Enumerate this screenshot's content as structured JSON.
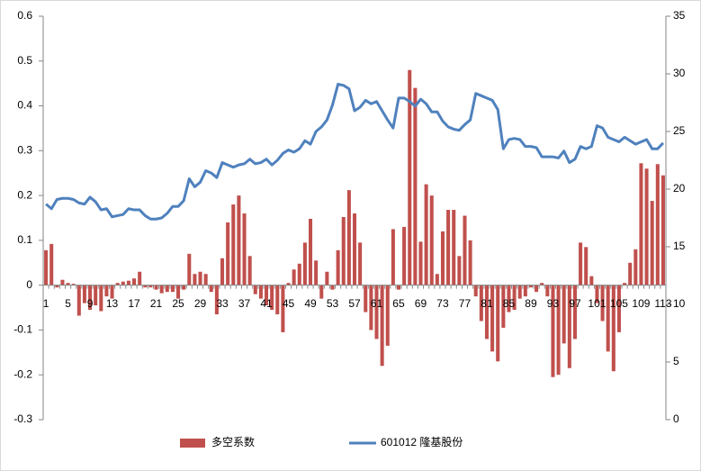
{
  "chart_data": {
    "type": "bar_line",
    "categories": [
      1,
      null,
      null,
      null,
      5,
      null,
      null,
      null,
      9,
      null,
      null,
      null,
      13,
      null,
      null,
      null,
      17,
      null,
      null,
      null,
      21,
      null,
      null,
      null,
      25,
      null,
      null,
      null,
      29,
      null,
      null,
      null,
      33,
      null,
      null,
      null,
      37,
      null,
      null,
      null,
      41,
      null,
      null,
      null,
      45,
      null,
      null,
      null,
      49,
      null,
      null,
      null,
      53,
      null,
      null,
      null,
      57,
      null,
      null,
      null,
      61,
      null,
      null,
      null,
      65,
      null,
      null,
      null,
      69,
      null,
      null,
      null,
      73,
      null,
      null,
      null,
      77,
      null,
      null,
      null,
      81,
      null,
      null,
      null,
      85,
      null,
      null,
      null,
      89,
      null,
      null,
      null,
      93,
      null,
      null,
      null,
      97,
      null,
      null,
      null,
      101,
      null,
      null,
      null,
      105,
      null,
      null,
      null,
      109,
      null,
      null,
      null,
      113
    ],
    "series": [
      {
        "name": "多空系数",
        "type": "bar",
        "color": "#c0504d",
        "values": [
          0.078,
          0.092,
          -0.005,
          0.012,
          0.005,
          0.003,
          -0.068,
          -0.04,
          -0.055,
          -0.045,
          -0.058,
          -0.025,
          -0.03,
          0.005,
          0.008,
          0.01,
          0.015,
          0.03,
          -0.005,
          -0.005,
          -0.01,
          -0.018,
          -0.015,
          -0.015,
          -0.03,
          -0.01,
          0.07,
          0.025,
          0.03,
          0.025,
          -0.015,
          -0.065,
          0.06,
          0.14,
          0.18,
          0.2,
          0.16,
          0.065,
          -0.02,
          -0.03,
          -0.045,
          -0.055,
          -0.065,
          -0.105,
          0.005,
          0.035,
          0.048,
          0.095,
          0.148,
          0.055,
          -0.03,
          0.03,
          -0.01,
          0.078,
          0.152,
          0.212,
          0.16,
          0.095,
          -0.06,
          -0.1,
          -0.12,
          -0.18,
          -0.135,
          0.125,
          -0.01,
          0.13,
          0.48,
          0.44,
          0.097,
          0.225,
          0.2,
          0.025,
          0.12,
          0.168,
          0.168,
          0.065,
          0.155,
          0.1,
          -0.025,
          -0.08,
          -0.12,
          -0.148,
          -0.17,
          -0.095,
          -0.06,
          -0.055,
          -0.03,
          -0.025,
          -0.005,
          -0.015,
          0.005,
          -0.025,
          -0.205,
          -0.2,
          -0.13,
          -0.185,
          -0.12,
          0.095,
          0.085,
          0.02,
          -0.04,
          -0.08,
          -0.148,
          -0.192,
          -0.105,
          0.005,
          0.05,
          0.08,
          0.272,
          0.26,
          0.188,
          0.27,
          0.245
        ]
      },
      {
        "name": "601012 隆基股份",
        "type": "line",
        "axis": "y2",
        "color": "#4f81bd",
        "values": [
          18.7,
          18.3,
          19.1,
          19.2,
          19.2,
          19.1,
          18.8,
          18.7,
          19.3,
          18.9,
          18.2,
          18.3,
          17.6,
          17.7,
          17.8,
          18.3,
          18.2,
          18.2,
          17.7,
          17.4,
          17.4,
          17.5,
          17.9,
          18.5,
          18.5,
          19.0,
          20.9,
          20.2,
          20.6,
          21.6,
          21.4,
          21.0,
          22.3,
          22.1,
          21.9,
          22.1,
          22.2,
          22.6,
          22.2,
          22.3,
          22.6,
          22.1,
          22.5,
          23.1,
          23.4,
          23.2,
          23.5,
          24.2,
          23.9,
          25.0,
          25.4,
          26.0,
          27.3,
          29.1,
          29.0,
          28.7,
          26.8,
          27.1,
          27.7,
          27.4,
          27.6,
          26.8,
          26.0,
          25.3,
          27.9,
          27.9,
          27.6,
          27.2,
          27.8,
          27.4,
          26.7,
          26.7,
          25.9,
          25.4,
          25.2,
          25.1,
          25.6,
          26.0,
          28.3,
          28.1,
          27.9,
          27.7,
          26.9,
          23.5,
          24.3,
          24.4,
          24.3,
          23.7,
          23.7,
          23.6,
          22.8,
          22.8,
          22.8,
          22.7,
          23.3,
          22.3,
          22.6,
          23.7,
          23.5,
          23.7,
          25.5,
          25.3,
          24.5,
          24.3,
          24.1,
          24.5,
          24.2,
          23.9,
          24.1,
          24.3,
          23.5,
          23.5,
          24.0
        ]
      }
    ],
    "ylim": [
      -0.3,
      0.6
    ],
    "yticks": [
      -0.3,
      -0.2,
      -0.1,
      0,
      0.1,
      0.2,
      0.3,
      0.4,
      0.5,
      0.6
    ],
    "y2lim": [
      0,
      35
    ],
    "y2ticks": [
      0,
      5,
      10,
      15,
      20,
      25,
      30,
      35
    ],
    "grid": false,
    "legend": "bottom"
  }
}
